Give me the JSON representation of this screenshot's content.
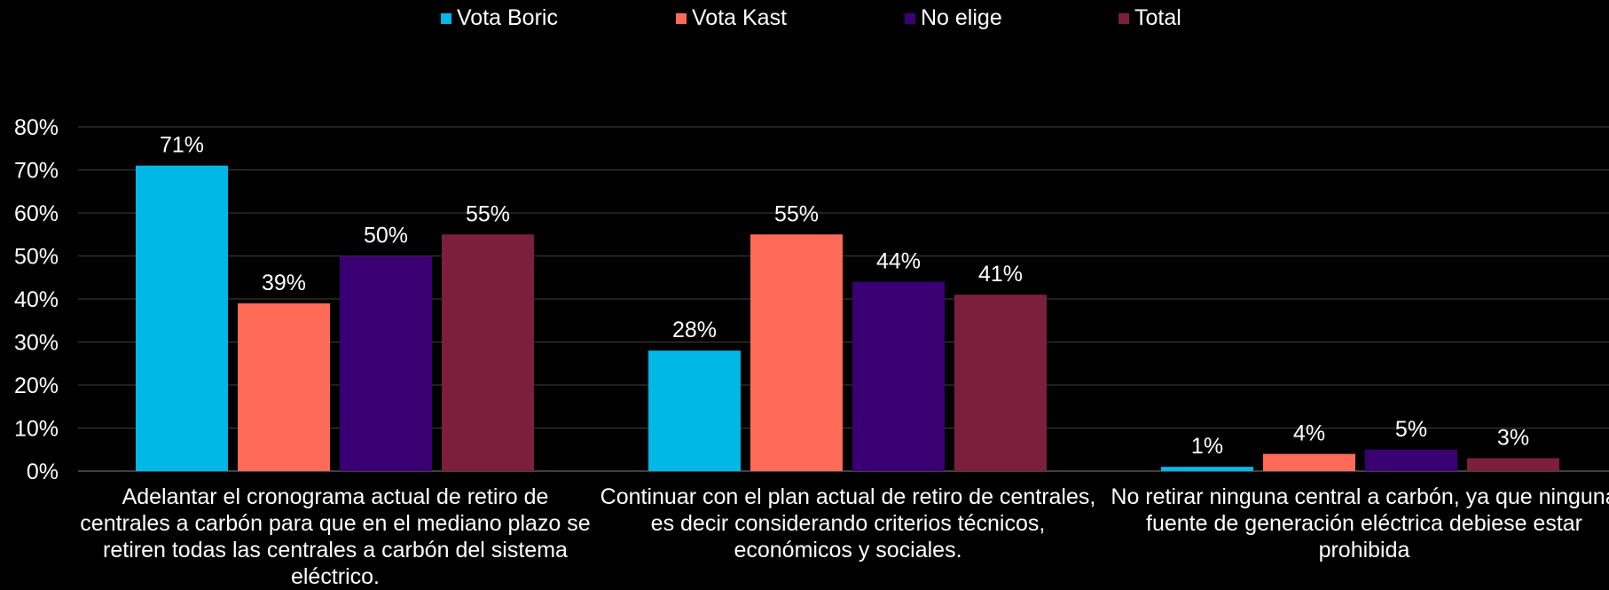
{
  "chart_data": {
    "type": "bar",
    "categories": [
      "Adelantar el cronograma actual de retiro de centrales a carbón para que en el mediano plazo se retiren todas las centrales a carbón del sistema eléctrico.",
      "Continuar con el plan actual de retiro de centrales, es decir considerando criterios técnicos, económicos y sociales.",
      "No retirar ninguna central a carbón, ya que ninguna fuente de generación eléctrica debiese estar prohibida"
    ],
    "series": [
      {
        "name": "Vota Boric",
        "color": "#00B8E6",
        "values": [
          71,
          28,
          1
        ],
        "labels": [
          "71%",
          "28%",
          "1%"
        ]
      },
      {
        "name": "Vota Kast",
        "color": "#FF6B57",
        "values": [
          39,
          55,
          4
        ],
        "labels": [
          "39%",
          "55%",
          "4%"
        ]
      },
      {
        "name": "No elige",
        "color": "#3A0073",
        "values": [
          50,
          44,
          5
        ],
        "labels": [
          "50%",
          "44%",
          "5%"
        ]
      },
      {
        "name": "Total",
        "color": "#7B1F3C",
        "values": [
          55,
          41,
          3
        ],
        "labels": [
          "55%",
          "41%",
          "3%"
        ]
      }
    ],
    "ylim": [
      0,
      80
    ],
    "yticks": [
      "0%",
      "10%",
      "20%",
      "30%",
      "40%",
      "50%",
      "60%",
      "70%",
      "80%"
    ],
    "grid": true,
    "legend_position": "top-center",
    "title": "",
    "xlabel": "",
    "ylabel": ""
  }
}
